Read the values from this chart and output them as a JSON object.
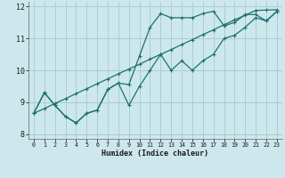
{
  "xlabel": "Humidex (Indice chaleur)",
  "bg_color": "#cde8ec",
  "grid_color": "#aacdd4",
  "line_color": "#1e7070",
  "line1_x": [
    0,
    1,
    2,
    3,
    4,
    5,
    6,
    7,
    8,
    9,
    10,
    11,
    12,
    13,
    14,
    15,
    16,
    17,
    18,
    19,
    20,
    21,
    22,
    23
  ],
  "line1_y": [
    8.65,
    9.3,
    8.9,
    8.55,
    8.35,
    8.65,
    8.75,
    9.4,
    9.6,
    8.9,
    9.5,
    10.0,
    10.5,
    10.0,
    10.3,
    10.0,
    10.3,
    10.5,
    11.0,
    11.1,
    11.35,
    11.65,
    11.55,
    11.85
  ],
  "line2_x": [
    0,
    1,
    2,
    3,
    4,
    5,
    6,
    7,
    8,
    9,
    10,
    11,
    12,
    13,
    14,
    15,
    16,
    17,
    18,
    19,
    20,
    21,
    22,
    23
  ],
  "line2_y": [
    8.65,
    9.3,
    8.9,
    8.55,
    8.35,
    8.65,
    8.75,
    9.4,
    9.6,
    9.55,
    10.45,
    11.35,
    11.78,
    11.65,
    11.65,
    11.65,
    11.78,
    11.85,
    11.4,
    11.5,
    11.75,
    11.75,
    11.55,
    11.85
  ],
  "line3_x": [
    0,
    1,
    2,
    3,
    4,
    5,
    6,
    7,
    8,
    9,
    10,
    11,
    12,
    13,
    14,
    15,
    16,
    17,
    18,
    19,
    20,
    21,
    22,
    23
  ],
  "line3_y": [
    8.65,
    8.8,
    8.96,
    9.11,
    9.27,
    9.42,
    9.58,
    9.73,
    9.89,
    10.04,
    10.19,
    10.35,
    10.5,
    10.65,
    10.81,
    10.96,
    11.12,
    11.27,
    11.43,
    11.58,
    11.73,
    11.88,
    11.89,
    11.9
  ],
  "xlim": [
    -0.5,
    23.5
  ],
  "ylim": [
    7.85,
    12.15
  ],
  "yticks": [
    8,
    9,
    10,
    11,
    12
  ],
  "xticks": [
    0,
    1,
    2,
    3,
    4,
    5,
    6,
    7,
    8,
    9,
    10,
    11,
    12,
    13,
    14,
    15,
    16,
    17,
    18,
    19,
    20,
    21,
    22,
    23
  ],
  "markersize": 2.5,
  "linewidth": 0.9
}
